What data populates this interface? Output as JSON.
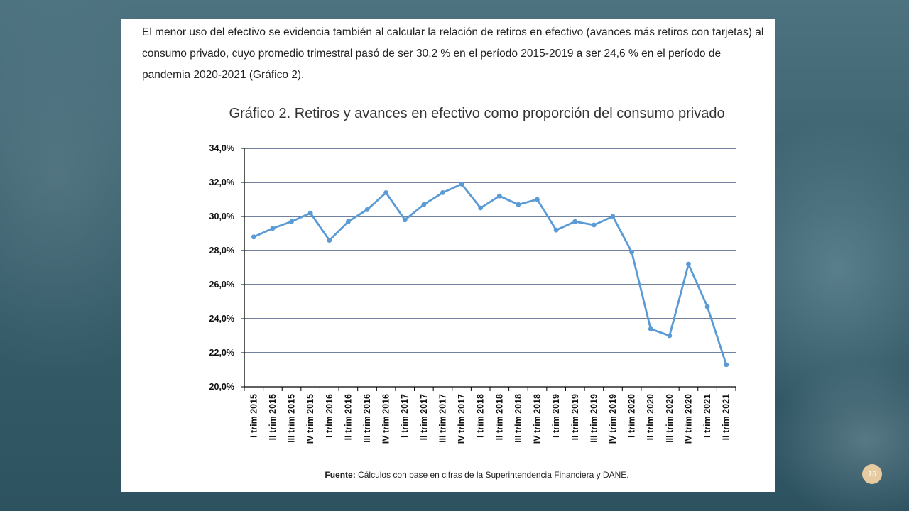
{
  "intro_text": "El menor uso del efectivo se evidencia también al calcular la relación de retiros en efectivo (avances más retiros con tarjetas) al consumo privado, cuyo promedio trimestral pasó de ser 30,2 % en el período 2015-2019 a ser 24,6 % en el período de pandemia 2020-2021 (Gráfico 2).",
  "source": {
    "label": "Fuente:",
    "text": "Cálculos con base en cifras de la Superintendencia Financiera y DANE."
  },
  "page_number": "13",
  "colors": {
    "line": "#5b9bd5",
    "grid": "#1f3864"
  },
  "chart_data": {
    "type": "line",
    "title": "Gráfico 2. Retiros y avances en efectivo como proporción del consumo privado",
    "xlabel": "",
    "ylabel": "",
    "ylim": [
      20,
      34
    ],
    "y_ticks": [
      "20,0%",
      "22,0%",
      "24,0%",
      "26,0%",
      "28,0%",
      "30,0%",
      "32,0%",
      "34,0%"
    ],
    "grid": true,
    "categories": [
      "I trim 2015",
      "II trim 2015",
      "III trim 2015",
      "IV trim 2015",
      "I trim 2016",
      "II trim 2016",
      "III trim 2016",
      "IV trim 2016",
      "I trim 2017",
      "II trim 2017",
      "III trim 2017",
      "IV trim 2017",
      "I trim 2018",
      "II trim 2018",
      "III trim 2018",
      "IV trim 2018",
      "I trim 2019",
      "II trim 2019",
      "III trim 2019",
      "IV trim 2019",
      "I trim 2020",
      "II trim 2020",
      "III trim 2020",
      "IV trim 2020",
      "I trim 2021",
      "II trim 2021"
    ],
    "series": [
      {
        "values": [
          28.8,
          29.3,
          29.7,
          30.2,
          28.6,
          29.7,
          30.4,
          31.4,
          29.8,
          30.7,
          31.4,
          31.9,
          30.5,
          31.2,
          30.7,
          31.0,
          29.2,
          29.7,
          29.5,
          30.0,
          27.9,
          23.4,
          23.0,
          27.2,
          24.7,
          21.3
        ]
      }
    ]
  }
}
